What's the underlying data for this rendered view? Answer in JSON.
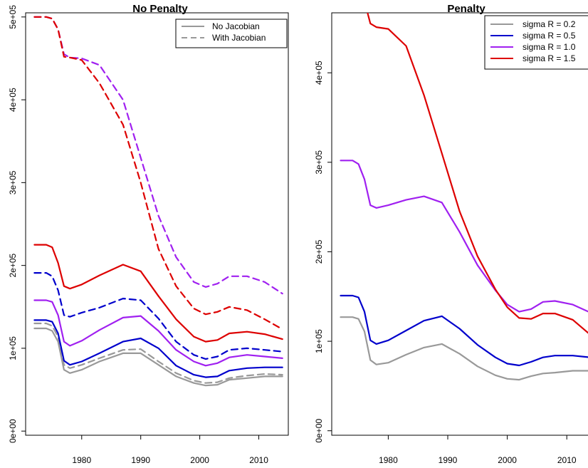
{
  "chart_data": [
    {
      "type": "line",
      "title": "No Penalty",
      "xlabel": "",
      "ylabel": "",
      "x": [
        1972,
        1974,
        1975,
        1976,
        1977,
        1978,
        1980,
        1983,
        1987,
        1990,
        1993,
        1996,
        1999,
        2001,
        2003,
        2005,
        2008,
        2011,
        2014
      ],
      "xlim": [
        1970.5,
        2015
      ],
      "ylim": [
        -5000,
        505000
      ],
      "x_ticks": [
        1980,
        1990,
        2000,
        2010
      ],
      "y_ticks": [
        0,
        100000,
        200000,
        300000,
        400000,
        500000
      ],
      "y_tick_labels": [
        "0e+00",
        "1e+05",
        "2e+05",
        "3e+05",
        "4e+05",
        "5e+05"
      ],
      "grid": false,
      "legend_position": "top-right",
      "legend": [
        {
          "label": "No Jacobian",
          "dash": "solid"
        },
        {
          "label": "With Jacobian",
          "dash": "dashed"
        }
      ],
      "series": [
        {
          "color": "#999999",
          "dash": "solid",
          "values": [
            124000,
            124000,
            121000,
            108000,
            74000,
            70000,
            74000,
            84000,
            94000,
            94000,
            80000,
            66000,
            58000,
            55000,
            56000,
            62000,
            64000,
            66000,
            66000
          ]
        },
        {
          "color": "#999999",
          "dash": "dashed",
          "values": [
            130000,
            130000,
            127000,
            114000,
            80000,
            76000,
            80000,
            88000,
            98000,
            99000,
            84000,
            70000,
            61000,
            58000,
            59000,
            64000,
            67000,
            69000,
            68000
          ]
        },
        {
          "color": "#0000cc",
          "dash": "solid",
          "values": [
            134000,
            134000,
            132000,
            118000,
            85000,
            80000,
            84000,
            94000,
            108000,
            112000,
            100000,
            79000,
            68000,
            65000,
            66000,
            73000,
            76000,
            77000,
            77000
          ]
        },
        {
          "color": "#0000cc",
          "dash": "dashed",
          "values": [
            191000,
            191000,
            187000,
            170000,
            140000,
            138000,
            143000,
            149000,
            160000,
            158000,
            136000,
            108000,
            92000,
            87000,
            90000,
            98000,
            100000,
            98000,
            96000
          ]
        },
        {
          "color": "#a020f0",
          "dash": "solid",
          "values": [
            158000,
            158000,
            156000,
            140000,
            108000,
            103000,
            109000,
            122000,
            137000,
            139000,
            121000,
            98000,
            84000,
            79000,
            82000,
            89000,
            92000,
            90000,
            88000
          ]
        },
        {
          "color": "#a020f0",
          "dash": "dashed",
          "values": [
            500000,
            500000,
            498000,
            485000,
            455000,
            451000,
            450000,
            442000,
            400000,
            330000,
            260000,
            210000,
            180000,
            174000,
            178000,
            187000,
            187000,
            180000,
            166000
          ]
        },
        {
          "color": "#dd0000",
          "dash": "solid",
          "values": [
            225000,
            225000,
            222000,
            203000,
            175000,
            172000,
            177000,
            188000,
            201000,
            193000,
            163000,
            135000,
            114000,
            108000,
            110000,
            118000,
            120000,
            117000,
            111000
          ]
        },
        {
          "color": "#dd0000",
          "dash": "dashed",
          "values": [
            500000,
            500000,
            498000,
            485000,
            452000,
            451000,
            448000,
            420000,
            370000,
            300000,
            220000,
            175000,
            148000,
            141000,
            144000,
            150000,
            146000,
            135000,
            123000
          ]
        }
      ]
    },
    {
      "type": "line",
      "title": "Penalty",
      "xlabel": "",
      "ylabel": "",
      "x": [
        1972,
        1974,
        1975,
        1976,
        1977,
        1978,
        1980,
        1983,
        1986,
        1989,
        1992,
        1995,
        1998,
        2000,
        2002,
        2004,
        2006,
        2008,
        2011,
        2014
      ],
      "xlim": [
        1970.5,
        2015
      ],
      "ylim": [
        -5000,
        467000
      ],
      "x_ticks": [
        1980,
        1990,
        2000,
        2010
      ],
      "y_ticks": [
        0,
        100000,
        200000,
        300000,
        400000
      ],
      "y_tick_labels": [
        "0e+00",
        "1e+05",
        "2e+05",
        "3e+05",
        "4e+05"
      ],
      "grid": false,
      "legend_position": "top-right",
      "legend": [
        {
          "label": "sigma R = 0.2",
          "color": "#999999"
        },
        {
          "label": "sigma R = 0.5",
          "color": "#0000cc"
        },
        {
          "label": "sigma R = 1.0",
          "color": "#a020f0"
        },
        {
          "label": "sigma R = 1.5",
          "color": "#dd0000"
        }
      ],
      "series": [
        {
          "color": "#999999",
          "dash": "solid",
          "values": [
            127000,
            127000,
            125000,
            111000,
            79000,
            74000,
            76000,
            85000,
            93000,
            97000,
            86000,
            72000,
            62000,
            58000,
            57000,
            61000,
            64000,
            65000,
            67000,
            67000
          ]
        },
        {
          "color": "#0000cc",
          "dash": "solid",
          "values": [
            151000,
            151000,
            149000,
            133000,
            101000,
            97000,
            101000,
            112000,
            123000,
            128000,
            114000,
            96000,
            82000,
            75000,
            73000,
            77000,
            82000,
            84000,
            84000,
            82000
          ]
        },
        {
          "color": "#a020f0",
          "dash": "solid",
          "values": [
            302000,
            302000,
            298000,
            281000,
            252000,
            249000,
            252000,
            258000,
            262000,
            255000,
            222000,
            185000,
            157000,
            141000,
            133000,
            136000,
            144000,
            145000,
            141000,
            132000
          ]
        },
        {
          "color": "#dd0000",
          "dash": "solid",
          "values": [
            520000,
            510000,
            500000,
            480000,
            455000,
            451000,
            449000,
            430000,
            375000,
            310000,
            245000,
            195000,
            158000,
            138000,
            126000,
            125000,
            131000,
            131000,
            124000,
            107000
          ]
        }
      ]
    }
  ]
}
